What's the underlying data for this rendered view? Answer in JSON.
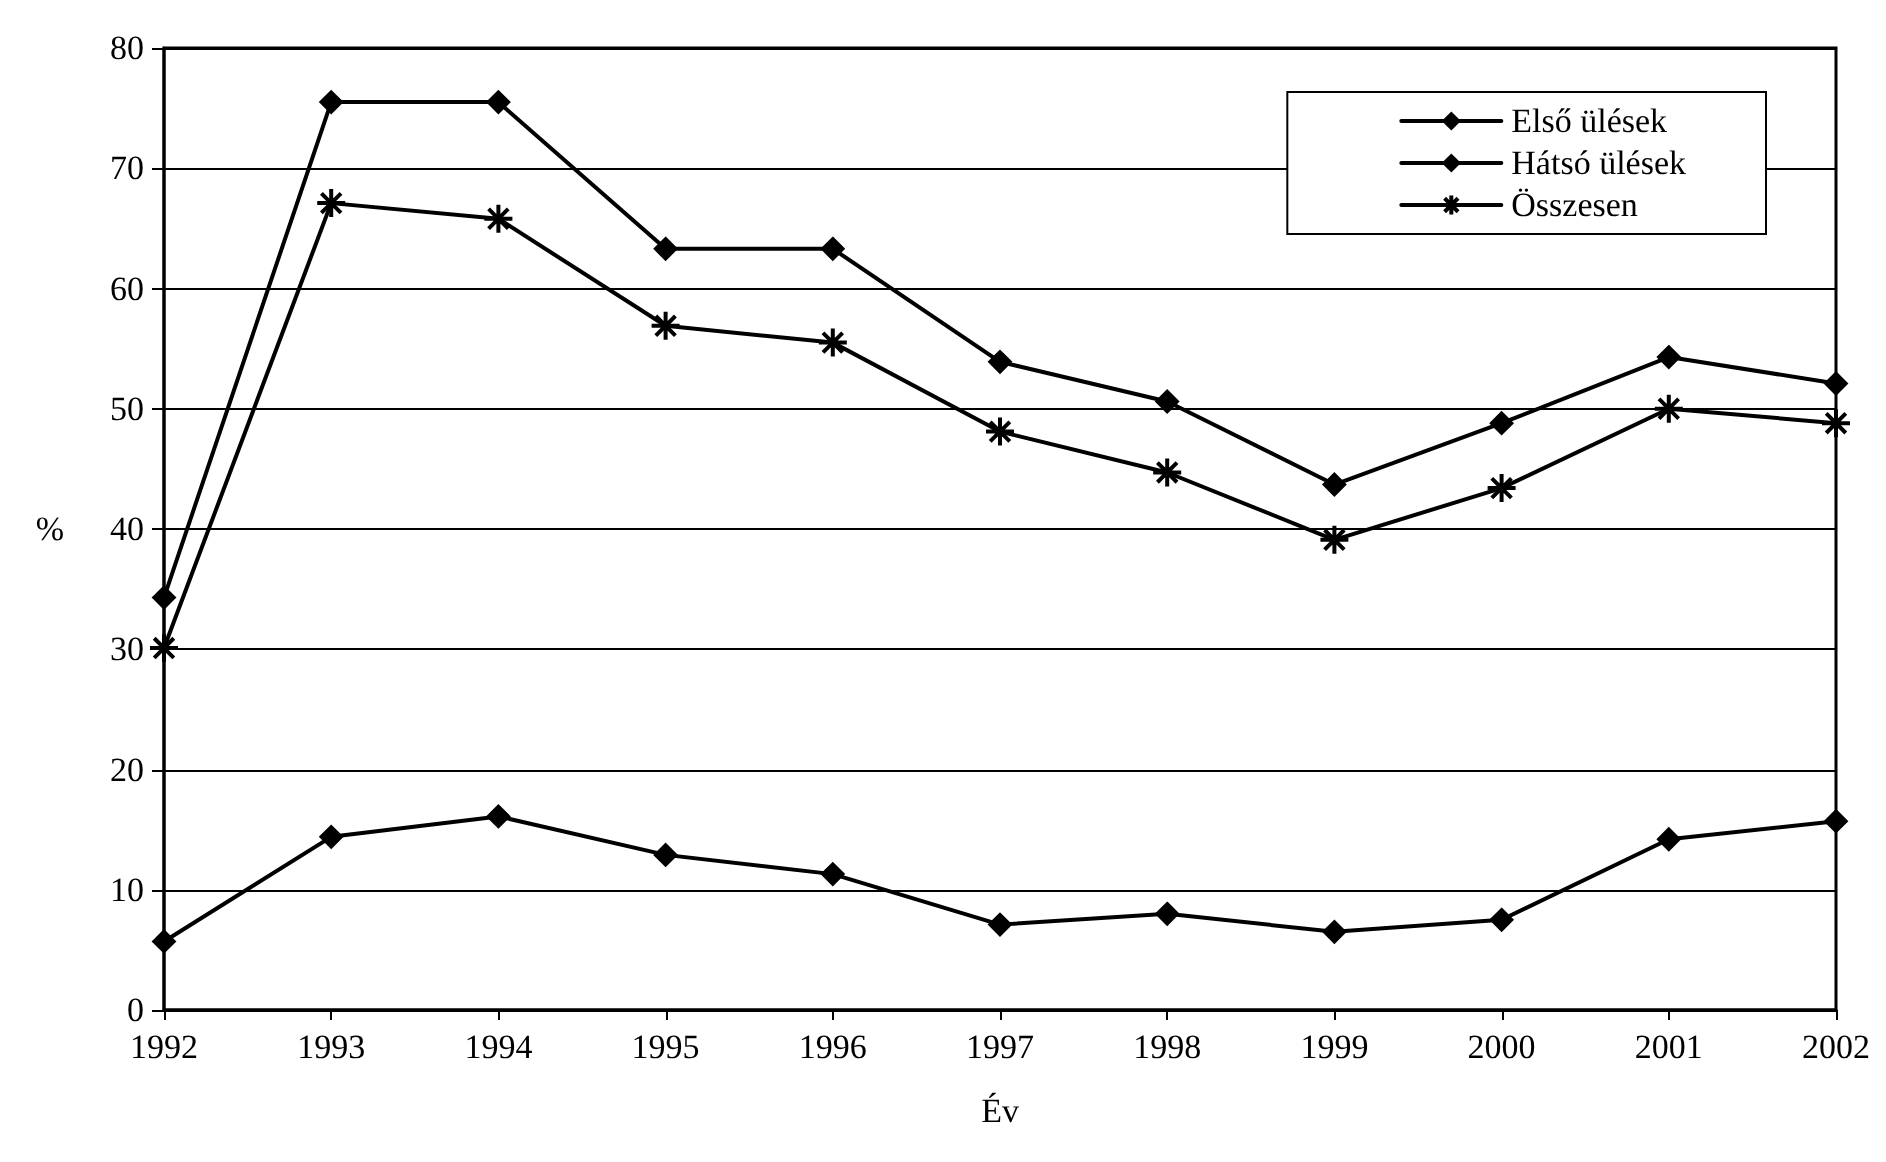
{
  "chart_data": {
    "type": "line",
    "xlabel": "Év",
    "ylabel": "%",
    "categories": [
      "1992",
      "1993",
      "1994",
      "1995",
      "1996",
      "1997",
      "1998",
      "1999",
      "2000",
      "2001",
      "2002"
    ],
    "series": [
      {
        "name": "Első ülések",
        "color": "#000000",
        "marker": "diamond",
        "values": [
          34.3,
          75.5,
          75.5,
          63.3,
          63.3,
          53.9,
          50.6,
          43.7,
          48.8,
          54.3,
          52.1
        ]
      },
      {
        "name": "Hátsó ülések",
        "color": "#000000",
        "marker": "diamond",
        "values": [
          5.7,
          14.4,
          16.1,
          12.9,
          11.3,
          7.1,
          8.0,
          6.5,
          7.5,
          14.2,
          15.7
        ]
      },
      {
        "name": "Összesen",
        "color": "#000000",
        "marker": "cross",
        "values": [
          30.1,
          67.1,
          65.8,
          56.9,
          55.5,
          48.1,
          44.7,
          39.1,
          43.4,
          50.0,
          48.8
        ]
      }
    ],
    "ylim": [
      0,
      80
    ],
    "yticks": [
      0,
      10,
      20,
      30,
      40,
      50,
      60,
      70,
      80
    ],
    "grid": "y",
    "legend": "top right",
    "line_style": "solid"
  }
}
